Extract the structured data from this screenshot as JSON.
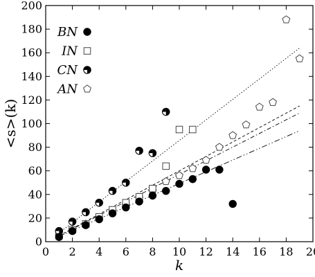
{
  "chart_data": {
    "type": "scatter",
    "title": "",
    "xlabel": "k",
    "ylabel": "<s>(k)",
    "xlim": [
      0,
      20
    ],
    "ylim": [
      0,
      200
    ],
    "xticks": [
      0,
      2,
      4,
      6,
      8,
      10,
      12,
      14,
      16,
      18,
      20
    ],
    "yticks": [
      0,
      20,
      40,
      60,
      80,
      100,
      120,
      140,
      160,
      180,
      200
    ],
    "grid": false,
    "legend_position": "top-left",
    "series": [
      {
        "name": "BN",
        "marker": "filled-circle",
        "points": [
          [
            1,
            4
          ],
          [
            2,
            9
          ],
          [
            3,
            14
          ],
          [
            4,
            19
          ],
          [
            5,
            24
          ],
          [
            6,
            29
          ],
          [
            7,
            34
          ],
          [
            8,
            39
          ],
          [
            9,
            43
          ],
          [
            10,
            49
          ],
          [
            11,
            53
          ],
          [
            12,
            61
          ],
          [
            13,
            61
          ],
          [
            14,
            32
          ]
        ]
      },
      {
        "name": "IN",
        "marker": "open-square",
        "points": [
          [
            1,
            5
          ],
          [
            2,
            10
          ],
          [
            3,
            15
          ],
          [
            4,
            21
          ],
          [
            5,
            27
          ],
          [
            6,
            33
          ],
          [
            7,
            38
          ],
          [
            8,
            45
          ],
          [
            9,
            64
          ],
          [
            10,
            95
          ],
          [
            11,
            95
          ]
        ]
      },
      {
        "name": "CN",
        "marker": "half-filled-circle",
        "points": [
          [
            1,
            9
          ],
          [
            2,
            17
          ],
          [
            3,
            25
          ],
          [
            4,
            33
          ],
          [
            5,
            43
          ],
          [
            6,
            50
          ],
          [
            7,
            77
          ],
          [
            8,
            75
          ],
          [
            9,
            110
          ]
        ]
      },
      {
        "name": "AN",
        "marker": "open-pentagon",
        "points": [
          [
            1,
            5
          ],
          [
            2,
            10
          ],
          [
            3,
            15
          ],
          [
            4,
            20
          ],
          [
            5,
            26
          ],
          [
            6,
            31
          ],
          [
            7,
            37
          ],
          [
            8,
            43
          ],
          [
            9,
            51
          ],
          [
            10,
            56
          ],
          [
            11,
            62
          ],
          [
            12,
            69
          ],
          [
            13,
            80
          ],
          [
            14,
            90
          ],
          [
            15,
            99
          ],
          [
            16,
            114
          ],
          [
            17,
            118
          ],
          [
            18,
            188
          ],
          [
            19,
            155
          ]
        ]
      }
    ],
    "fit_lines": [
      {
        "series": "CN",
        "style": "dotted",
        "points": [
          [
            1,
            7.5
          ],
          [
            19,
            164
          ]
        ]
      },
      {
        "series": "AN",
        "style": "dashed",
        "points": [
          [
            1,
            5
          ],
          [
            19,
            115
          ]
        ]
      },
      {
        "series": "IN",
        "style": "dash-dot",
        "points": [
          [
            1,
            5
          ],
          [
            19,
            109
          ]
        ]
      },
      {
        "series": "BN",
        "style": "dash-dot-dot",
        "points": [
          [
            1,
            4.5
          ],
          [
            19,
            94
          ]
        ]
      }
    ]
  }
}
